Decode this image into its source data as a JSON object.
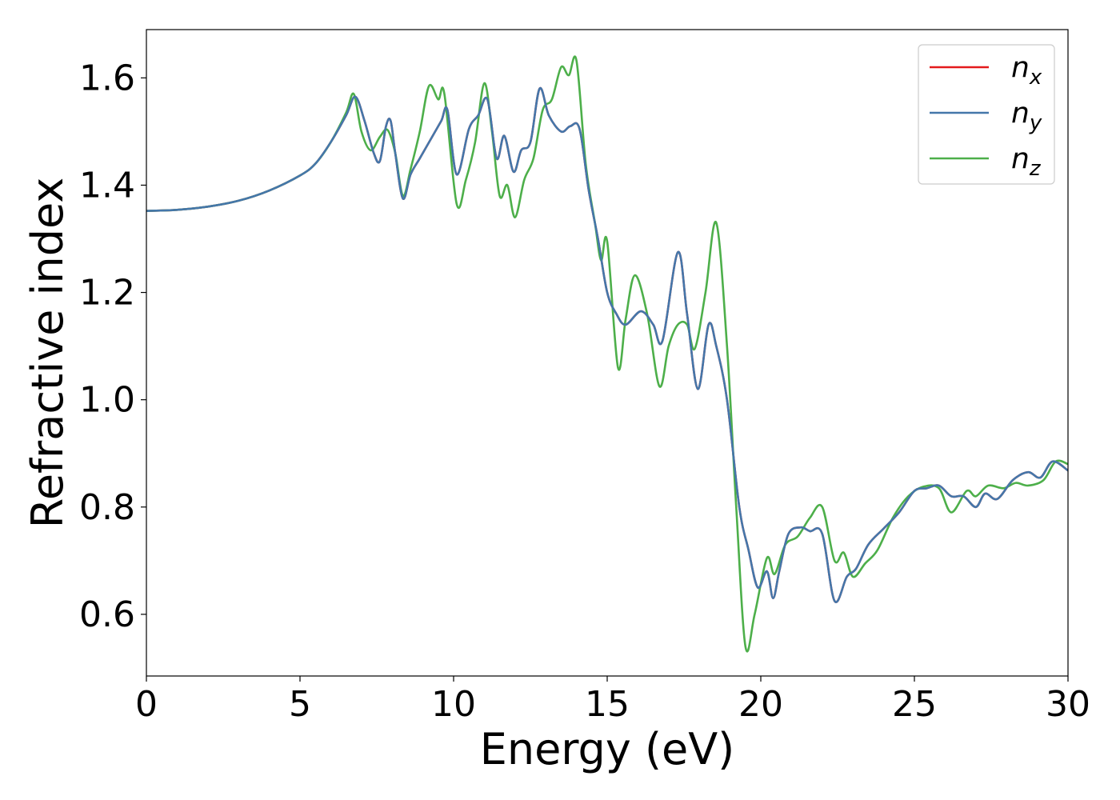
{
  "chart_data": {
    "type": "line",
    "xlabel": "Energy (eV)",
    "ylabel": "Refractive index",
    "xlim": [
      0,
      30
    ],
    "ylim": [
      0.485,
      1.69
    ],
    "xticks": [
      "0",
      "5",
      "10",
      "15",
      "20",
      "25",
      "30"
    ],
    "yticks": [
      "0.6",
      "0.8",
      "1.0",
      "1.2",
      "1.4",
      "1.6"
    ],
    "grid": false,
    "legend_position": "top-right",
    "series": [
      {
        "name_base": "n",
        "name_sub": "x",
        "color": "#e41a1c",
        "points": [
          [
            0,
            1.352
          ],
          [
            1,
            1.354
          ],
          [
            2,
            1.36
          ],
          [
            3,
            1.371
          ],
          [
            4,
            1.39
          ],
          [
            5,
            1.418
          ],
          [
            5.5,
            1.44
          ],
          [
            6,
            1.48
          ],
          [
            6.5,
            1.53
          ],
          [
            6.8,
            1.565
          ],
          [
            7.1,
            1.52
          ],
          [
            7.4,
            1.46
          ],
          [
            7.6,
            1.445
          ],
          [
            7.8,
            1.51
          ],
          [
            7.95,
            1.52
          ],
          [
            8.1,
            1.46
          ],
          [
            8.35,
            1.375
          ],
          [
            8.6,
            1.42
          ],
          [
            8.9,
            1.45
          ],
          [
            9.3,
            1.49
          ],
          [
            9.6,
            1.52
          ],
          [
            9.8,
            1.54
          ],
          [
            10.1,
            1.42
          ],
          [
            10.5,
            1.505
          ],
          [
            10.8,
            1.53
          ],
          [
            11.1,
            1.56
          ],
          [
            11.4,
            1.45
          ],
          [
            11.65,
            1.492
          ],
          [
            11.95,
            1.425
          ],
          [
            12.2,
            1.465
          ],
          [
            12.5,
            1.48
          ],
          [
            12.8,
            1.58
          ],
          [
            13.1,
            1.53
          ],
          [
            13.5,
            1.5
          ],
          [
            13.8,
            1.51
          ],
          [
            14.1,
            1.505
          ],
          [
            14.4,
            1.39
          ],
          [
            14.7,
            1.3
          ],
          [
            15.0,
            1.2
          ],
          [
            15.3,
            1.16
          ],
          [
            15.6,
            1.14
          ],
          [
            16.1,
            1.165
          ],
          [
            16.5,
            1.14
          ],
          [
            16.8,
            1.11
          ],
          [
            17.3,
            1.275
          ],
          [
            17.6,
            1.16
          ],
          [
            17.95,
            1.02
          ],
          [
            18.3,
            1.14
          ],
          [
            18.55,
            1.1
          ],
          [
            18.9,
            1.0
          ],
          [
            19.3,
            0.8
          ],
          [
            19.6,
            0.72
          ],
          [
            19.9,
            0.65
          ],
          [
            20.2,
            0.68
          ],
          [
            20.4,
            0.63
          ],
          [
            20.6,
            0.68
          ],
          [
            20.9,
            0.75
          ],
          [
            21.3,
            0.762
          ],
          [
            21.6,
            0.755
          ],
          [
            22.0,
            0.75
          ],
          [
            22.4,
            0.625
          ],
          [
            22.8,
            0.67
          ],
          [
            23.1,
            0.685
          ],
          [
            23.5,
            0.73
          ],
          [
            24.0,
            0.76
          ],
          [
            24.5,
            0.79
          ],
          [
            25.0,
            0.83
          ],
          [
            25.4,
            0.835
          ],
          [
            25.8,
            0.84
          ],
          [
            26.2,
            0.82
          ],
          [
            26.6,
            0.82
          ],
          [
            27.0,
            0.8
          ],
          [
            27.3,
            0.825
          ],
          [
            27.7,
            0.815
          ],
          [
            28.2,
            0.85
          ],
          [
            28.7,
            0.865
          ],
          [
            29.1,
            0.855
          ],
          [
            29.5,
            0.885
          ],
          [
            30,
            0.868
          ]
        ]
      },
      {
        "name_base": "n",
        "name_sub": "y",
        "color": "#4477aa",
        "points": [
          [
            0,
            1.352
          ],
          [
            1,
            1.354
          ],
          [
            2,
            1.36
          ],
          [
            3,
            1.371
          ],
          [
            4,
            1.39
          ],
          [
            5,
            1.418
          ],
          [
            5.5,
            1.44
          ],
          [
            6,
            1.48
          ],
          [
            6.5,
            1.53
          ],
          [
            6.8,
            1.565
          ],
          [
            7.1,
            1.52
          ],
          [
            7.4,
            1.46
          ],
          [
            7.6,
            1.445
          ],
          [
            7.8,
            1.51
          ],
          [
            7.95,
            1.52
          ],
          [
            8.1,
            1.46
          ],
          [
            8.35,
            1.375
          ],
          [
            8.6,
            1.42
          ],
          [
            8.9,
            1.45
          ],
          [
            9.3,
            1.49
          ],
          [
            9.6,
            1.52
          ],
          [
            9.8,
            1.54
          ],
          [
            10.1,
            1.42
          ],
          [
            10.5,
            1.505
          ],
          [
            10.8,
            1.53
          ],
          [
            11.1,
            1.56
          ],
          [
            11.4,
            1.45
          ],
          [
            11.65,
            1.492
          ],
          [
            11.95,
            1.425
          ],
          [
            12.2,
            1.465
          ],
          [
            12.5,
            1.48
          ],
          [
            12.8,
            1.58
          ],
          [
            13.1,
            1.53
          ],
          [
            13.5,
            1.5
          ],
          [
            13.8,
            1.51
          ],
          [
            14.1,
            1.505
          ],
          [
            14.4,
            1.39
          ],
          [
            14.7,
            1.3
          ],
          [
            15.0,
            1.2
          ],
          [
            15.3,
            1.16
          ],
          [
            15.6,
            1.14
          ],
          [
            16.1,
            1.165
          ],
          [
            16.5,
            1.14
          ],
          [
            16.8,
            1.11
          ],
          [
            17.3,
            1.275
          ],
          [
            17.6,
            1.16
          ],
          [
            17.95,
            1.02
          ],
          [
            18.3,
            1.14
          ],
          [
            18.55,
            1.1
          ],
          [
            18.9,
            1.0
          ],
          [
            19.3,
            0.8
          ],
          [
            19.6,
            0.72
          ],
          [
            19.9,
            0.65
          ],
          [
            20.2,
            0.68
          ],
          [
            20.4,
            0.63
          ],
          [
            20.6,
            0.68
          ],
          [
            20.9,
            0.75
          ],
          [
            21.3,
            0.762
          ],
          [
            21.6,
            0.755
          ],
          [
            22.0,
            0.75
          ],
          [
            22.4,
            0.625
          ],
          [
            22.8,
            0.67
          ],
          [
            23.1,
            0.685
          ],
          [
            23.5,
            0.73
          ],
          [
            24.0,
            0.76
          ],
          [
            24.5,
            0.79
          ],
          [
            25.0,
            0.83
          ],
          [
            25.4,
            0.835
          ],
          [
            25.8,
            0.84
          ],
          [
            26.2,
            0.82
          ],
          [
            26.6,
            0.82
          ],
          [
            27.0,
            0.8
          ],
          [
            27.3,
            0.825
          ],
          [
            27.7,
            0.815
          ],
          [
            28.2,
            0.85
          ],
          [
            28.7,
            0.865
          ],
          [
            29.1,
            0.855
          ],
          [
            29.5,
            0.885
          ],
          [
            30,
            0.868
          ]
        ]
      },
      {
        "name_base": "n",
        "name_sub": "z",
        "color": "#4daf4a",
        "points": [
          [
            0,
            1.352
          ],
          [
            1,
            1.354
          ],
          [
            2,
            1.36
          ],
          [
            3,
            1.371
          ],
          [
            4,
            1.39
          ],
          [
            5,
            1.418
          ],
          [
            5.5,
            1.44
          ],
          [
            6,
            1.48
          ],
          [
            6.5,
            1.535
          ],
          [
            6.75,
            1.57
          ],
          [
            7.0,
            1.5
          ],
          [
            7.3,
            1.465
          ],
          [
            7.6,
            1.49
          ],
          [
            7.85,
            1.503
          ],
          [
            8.1,
            1.46
          ],
          [
            8.35,
            1.38
          ],
          [
            8.6,
            1.43
          ],
          [
            8.9,
            1.5
          ],
          [
            9.2,
            1.585
          ],
          [
            9.5,
            1.56
          ],
          [
            9.7,
            1.57
          ],
          [
            10.1,
            1.365
          ],
          [
            10.4,
            1.41
          ],
          [
            10.7,
            1.48
          ],
          [
            11.0,
            1.59
          ],
          [
            11.25,
            1.5
          ],
          [
            11.5,
            1.38
          ],
          [
            11.75,
            1.4
          ],
          [
            12.0,
            1.34
          ],
          [
            12.3,
            1.41
          ],
          [
            12.6,
            1.45
          ],
          [
            12.9,
            1.54
          ],
          [
            13.2,
            1.56
          ],
          [
            13.5,
            1.62
          ],
          [
            13.75,
            1.605
          ],
          [
            14.0,
            1.632
          ],
          [
            14.3,
            1.44
          ],
          [
            14.6,
            1.33
          ],
          [
            14.8,
            1.26
          ],
          [
            15.0,
            1.295
          ],
          [
            15.35,
            1.06
          ],
          [
            15.6,
            1.15
          ],
          [
            15.9,
            1.232
          ],
          [
            16.3,
            1.16
          ],
          [
            16.7,
            1.025
          ],
          [
            17.0,
            1.1
          ],
          [
            17.3,
            1.14
          ],
          [
            17.6,
            1.14
          ],
          [
            17.85,
            1.095
          ],
          [
            18.2,
            1.2
          ],
          [
            18.55,
            1.33
          ],
          [
            18.9,
            1.1
          ],
          [
            19.2,
            0.8
          ],
          [
            19.5,
            0.54
          ],
          [
            19.8,
            0.6
          ],
          [
            20.2,
            0.705
          ],
          [
            20.45,
            0.675
          ],
          [
            20.8,
            0.73
          ],
          [
            21.2,
            0.745
          ],
          [
            21.6,
            0.78
          ],
          [
            22.0,
            0.8
          ],
          [
            22.4,
            0.7
          ],
          [
            22.7,
            0.715
          ],
          [
            23.0,
            0.67
          ],
          [
            23.4,
            0.695
          ],
          [
            23.8,
            0.72
          ],
          [
            24.3,
            0.78
          ],
          [
            24.8,
            0.82
          ],
          [
            25.3,
            0.838
          ],
          [
            25.8,
            0.835
          ],
          [
            26.2,
            0.79
          ],
          [
            26.7,
            0.83
          ],
          [
            27.0,
            0.82
          ],
          [
            27.4,
            0.84
          ],
          [
            27.9,
            0.835
          ],
          [
            28.3,
            0.845
          ],
          [
            28.7,
            0.84
          ],
          [
            29.2,
            0.85
          ],
          [
            29.6,
            0.885
          ],
          [
            30,
            0.88
          ]
        ]
      }
    ]
  }
}
